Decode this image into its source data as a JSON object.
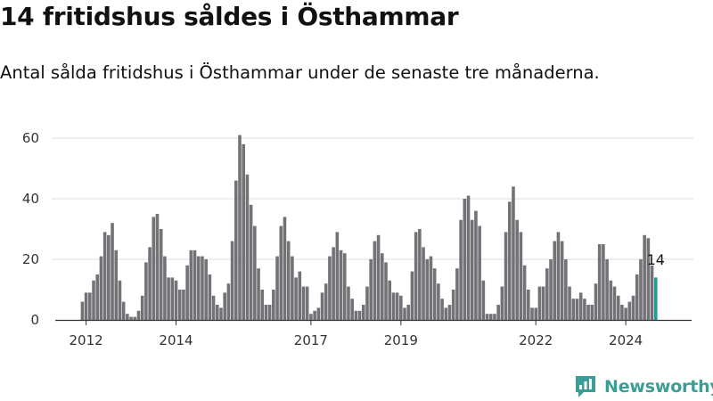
{
  "header": {
    "title": "14 fritidshus såldes i Östhammar",
    "subtitle": "Antal sålda fritidshus i Östhammar under de senaste tre månaderna."
  },
  "brand": {
    "name": "Newsworthy",
    "color": "#3a9e96"
  },
  "colors": {
    "bar": "#737276",
    "highlight": "#1f9e96",
    "grid": "#dddddd",
    "axis": "#333333"
  },
  "chart_data": {
    "type": "bar",
    "title": "14 fritidshus såldes i Östhammar",
    "subtitle": "Antal sålda fritidshus i Östhammar under de senaste tre månaderna.",
    "xlabel": "",
    "ylabel": "",
    "ylim": [
      0,
      60
    ],
    "yticks": [
      0,
      20,
      40,
      60
    ],
    "grid": true,
    "legend": "none",
    "x_start": "2011-12",
    "x_step": "1 month",
    "xtick_labels": [
      {
        "label": "2012",
        "month": "2012-01"
      },
      {
        "label": "2014",
        "month": "2014-01"
      },
      {
        "label": "2017",
        "month": "2017-01"
      },
      {
        "label": "2019",
        "month": "2019-01"
      },
      {
        "label": "2022",
        "month": "2022-01"
      },
      {
        "label": "2024",
        "month": "2024-01"
      }
    ],
    "values": [
      6,
      9,
      9,
      13,
      15,
      21,
      29,
      28,
      32,
      23,
      13,
      6,
      2,
      1,
      1,
      3,
      8,
      19,
      24,
      34,
      35,
      30,
      21,
      14,
      14,
      13,
      10,
      10,
      18,
      23,
      23,
      21,
      21,
      20,
      15,
      8,
      5,
      4,
      9,
      12,
      26,
      46,
      61,
      58,
      48,
      38,
      31,
      17,
      10,
      5,
      5,
      10,
      21,
      31,
      34,
      26,
      21,
      14,
      16,
      11,
      11,
      2,
      3,
      4,
      9,
      12,
      21,
      24,
      29,
      23,
      22,
      11,
      7,
      3,
      3,
      5,
      11,
      20,
      26,
      28,
      22,
      19,
      13,
      9,
      9,
      8,
      4,
      5,
      16,
      29,
      30,
      24,
      20,
      21,
      17,
      12,
      7,
      4,
      5,
      10,
      17,
      33,
      40,
      41,
      33,
      36,
      31,
      13,
      2,
      2,
      2,
      5,
      11,
      29,
      39,
      44,
      33,
      29,
      18,
      10,
      4,
      4,
      11,
      11,
      17,
      20,
      26,
      29,
      26,
      20,
      11,
      7,
      7,
      9,
      7,
      5,
      5,
      12,
      25,
      25,
      20,
      13,
      11,
      8,
      5,
      4,
      6,
      8,
      15,
      20,
      28,
      27,
      18,
      14
    ],
    "highlight_last": true,
    "annotation": {
      "text": "14",
      "index": -1
    }
  }
}
